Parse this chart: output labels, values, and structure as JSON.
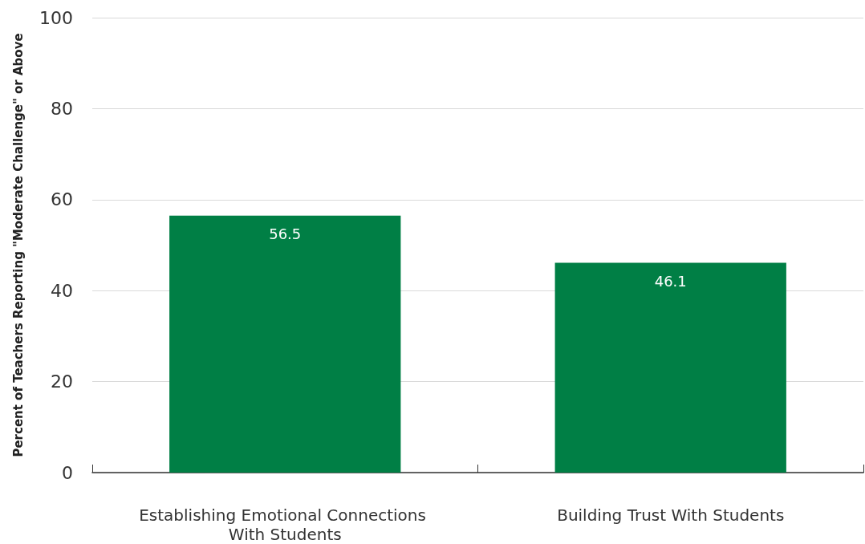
{
  "chart_data": {
    "type": "bar",
    "ylabel": "Percent of Teachers Reporting \"Moderate Challenge\" or Above",
    "categories": [
      "Establishing Emotional Connections With Students",
      "Building Trust With Students"
    ],
    "values": [
      56.5,
      46.1
    ],
    "color": "#007f45",
    "ylim": [
      0,
      100
    ],
    "yticks": [
      0,
      20,
      40,
      60,
      80,
      100
    ],
    "grid": "y",
    "data_labels": true
  }
}
